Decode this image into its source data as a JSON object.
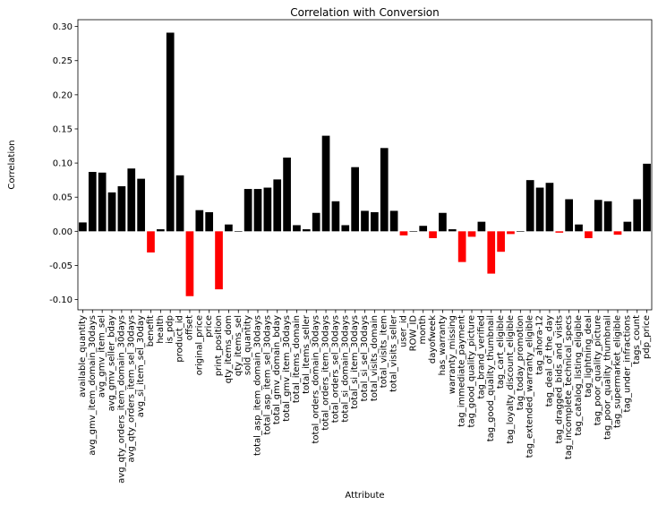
{
  "chart_data": {
    "type": "bar",
    "title": "Correlation with Conversion",
    "xlabel": "Attribute",
    "ylabel": "Correlation",
    "ylim": [
      -0.115,
      0.31
    ],
    "yticks": [
      -0.1,
      -0.05,
      0.0,
      0.05,
      0.1,
      0.15,
      0.2,
      0.25,
      0.3
    ],
    "ytick_labels": [
      "-0.10",
      "-0.05",
      "0.00",
      "0.05",
      "0.10",
      "0.15",
      "0.20",
      "0.25",
      "0.30"
    ],
    "grid": false,
    "positive_color": "#000000",
    "negative_color": "#ff0000",
    "categories": [
      "available_quantity",
      "avg_gmv_item_domain_30days",
      "avg_gmv_item_sel",
      "avg_gmv_seller_bday",
      "avg_qty_orders_item_domain_30days",
      "avg_qty_orders_item_sel_30days",
      "avg_si_item_sel_30day",
      "benefit",
      "health",
      "is_pdp",
      "product_id",
      "offset",
      "original_price",
      "price",
      "print_position",
      "qty_items_dom",
      "qty_items_sel",
      "sold_quantity",
      "total_asp_item_domain_30days",
      "total_asp_item_sel_30days",
      "total_gmv_domain_bday",
      "total_gmv_item_30days",
      "total_items_domain",
      "total_items_seller",
      "total_orders_domain_30days",
      "total_orders_item_30days",
      "total_orders_sel_30days",
      "total_si_domain_30days",
      "total_si_item_30days",
      "total_si_sel_30days",
      "total_visits_domain",
      "total_visits_item",
      "total_visits_seller",
      "user_id",
      "ROW_ID",
      "month",
      "dayofweek",
      "has_warranty",
      "warranty_missing",
      "tag_immediate_payment",
      "tag_good_quality_picture",
      "tag_brand_verified",
      "tag_good_quality_thumbnail",
      "tag_cart_eligible",
      "tag_loyalty_discount_eligible",
      "tag_today_promotion",
      "tag_extended_warranty_eligible",
      "tag_ahora-12",
      "tag_deal_of_the_day",
      "tag_dragged_bids_and_visits",
      "tag_incomplete_technical_specs",
      "tag_catalog_listing_eligible",
      "tag_lightning_deal",
      "tag_poor_quality_picture",
      "tag_poor_quality_thumbnail",
      "tag_supermarket_eligible",
      "tag_under_infractions",
      "tags_count",
      "pdp_price"
    ],
    "values": [
      0.013,
      0.087,
      0.086,
      0.057,
      0.066,
      0.092,
      0.077,
      -0.031,
      0.003,
      0.291,
      0.082,
      -0.095,
      0.031,
      0.028,
      -0.085,
      0.01,
      0.0,
      0.062,
      0.062,
      0.064,
      0.076,
      0.108,
      0.009,
      0.003,
      0.027,
      0.14,
      0.044,
      0.009,
      0.094,
      0.03,
      0.028,
      0.122,
      0.03,
      -0.006,
      0.0,
      0.008,
      -0.01,
      0.027,
      0.003,
      -0.045,
      -0.008,
      0.014,
      -0.062,
      -0.03,
      -0.004,
      0.0,
      0.075,
      0.064,
      0.071,
      -0.002,
      0.047,
      0.01,
      -0.01,
      0.046,
      0.044,
      -0.005,
      0.014,
      0.047,
      0.099
    ]
  }
}
